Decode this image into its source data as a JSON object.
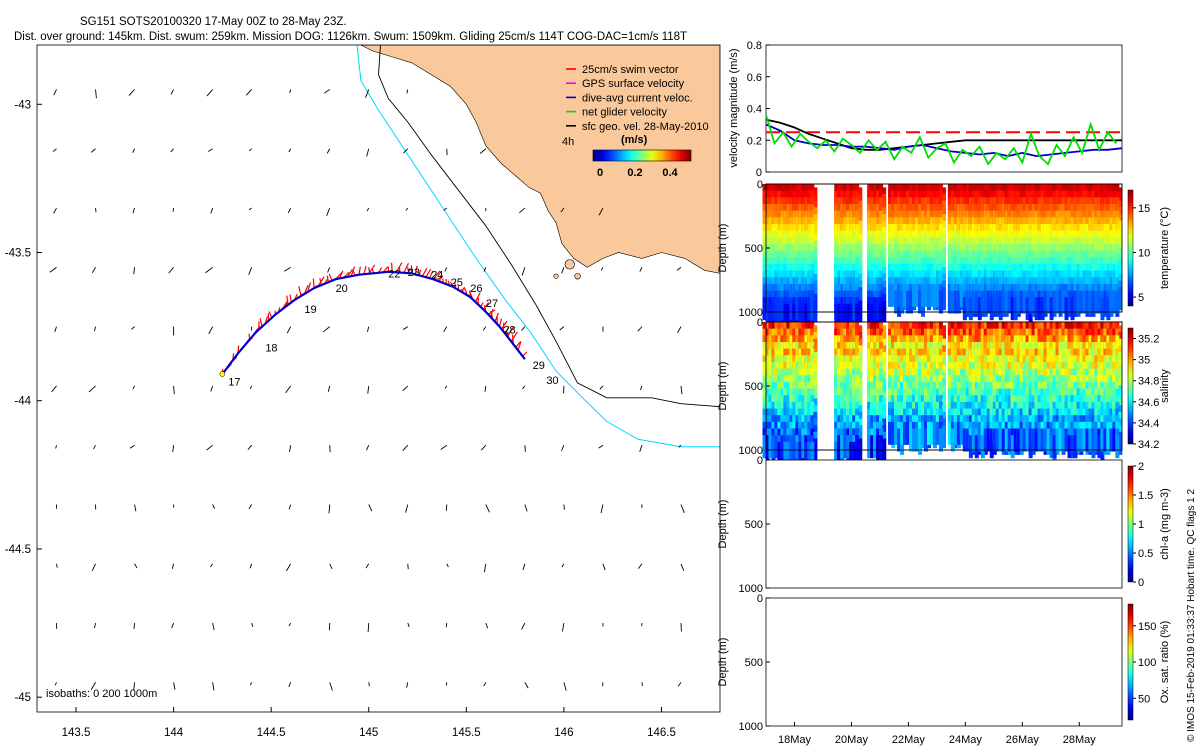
{
  "header": {
    "line1": "SG151 SOTS20100320 17-May 00Z to 28-May 23Z.",
    "line2": "Dist. over ground: 145km. Dist. swum: 259km. Mission DOG: 1126km. Swum: 1509km. Gliding 25cm/s 114T COG-DAC=1cm/s 118T"
  },
  "credit": "© IMOS 15-Feb-2019 01:33:37 Hobart time. QC flags 1  2",
  "colors": {
    "land": "#f9c89b",
    "swim_vector": "#ff0000",
    "gps_velocity": "#ff00ff",
    "dac": "#0000cc",
    "net_velocity": "#00dd00",
    "geo_velocity": "#000000",
    "isobath_200": "#00d8ff",
    "isobath_1000": "#000000"
  },
  "chart_data": [
    {
      "id": "map",
      "type": "scatter",
      "xlim": [
        143.3,
        146.8
      ],
      "ylim": [
        -45.05,
        -42.8
      ],
      "x_ticks": [
        "143.5",
        "144",
        "144.5",
        "145",
        "145.5",
        "146",
        "146.5"
      ],
      "y_ticks": [
        "-43",
        "-43.5",
        "-44",
        "-44.5",
        "-45"
      ],
      "isobaths_label": "isobaths: 0  200 1000m",
      "legend": {
        "position": "top-right",
        "entries": [
          {
            "label": "25cm/s swim vector",
            "color": "#ff0000"
          },
          {
            "label": "GPS surface velocity",
            "color": "#ff00ff"
          },
          {
            "label": "dive-avg current veloc.",
            "color": "#0000cc"
          },
          {
            "label": "net glider velocity",
            "color": "#00dd00"
          },
          {
            "label": "sfc geo. vel. 28-May-2010",
            "color": "#000000"
          }
        ],
        "time_label": "4h",
        "colorbar_unit": "(m/s)",
        "colorbar_ticks": [
          "0",
          "0.2",
          "0.4"
        ]
      },
      "track": [
        [
          144.25,
          -43.91
        ],
        [
          144.33,
          -43.84
        ],
        [
          144.42,
          -43.77
        ],
        [
          144.52,
          -43.71
        ],
        [
          144.62,
          -43.66
        ],
        [
          144.72,
          -43.62
        ],
        [
          144.83,
          -43.59
        ],
        [
          144.95,
          -43.575
        ],
        [
          145.1,
          -43.565
        ],
        [
          145.22,
          -43.57
        ],
        [
          145.33,
          -43.59
        ],
        [
          145.43,
          -43.615
        ],
        [
          145.52,
          -43.65
        ],
        [
          145.6,
          -43.7
        ],
        [
          145.67,
          -43.75
        ],
        [
          145.73,
          -43.8
        ],
        [
          145.8,
          -43.86
        ]
      ],
      "day_labels": [
        {
          "text": "17",
          "lon": 144.28,
          "lat": -43.935
        },
        {
          "text": "18",
          "lon": 144.47,
          "lat": -43.82
        },
        {
          "text": "19",
          "lon": 144.67,
          "lat": -43.69
        },
        {
          "text": "20",
          "lon": 144.83,
          "lat": -43.62
        },
        {
          "text": "22",
          "lon": 145.1,
          "lat": -43.57
        },
        {
          "text": "23",
          "lon": 145.2,
          "lat": -43.565
        },
        {
          "text": "24",
          "lon": 145.32,
          "lat": -43.575
        },
        {
          "text": "25",
          "lon": 145.42,
          "lat": -43.6
        },
        {
          "text": "26",
          "lon": 145.52,
          "lat": -43.62
        },
        {
          "text": "27",
          "lon": 145.6,
          "lat": -43.67
        },
        {
          "text": "28",
          "lon": 145.69,
          "lat": -43.76
        },
        {
          "text": "29",
          "lon": 145.84,
          "lat": -43.88
        },
        {
          "text": "30",
          "lon": 145.91,
          "lat": -43.93
        }
      ],
      "isobath_200": [
        [
          144.94,
          -42.8
        ],
        [
          144.96,
          -42.92
        ],
        [
          145.05,
          -43.02
        ],
        [
          145.2,
          -43.17
        ],
        [
          145.38,
          -43.35
        ],
        [
          145.55,
          -43.52
        ],
        [
          145.7,
          -43.66
        ],
        [
          145.83,
          -43.77
        ],
        [
          145.96,
          -43.9
        ],
        [
          146.08,
          -43.98
        ],
        [
          146.22,
          -44.07
        ],
        [
          146.38,
          -44.13
        ],
        [
          146.6,
          -44.155
        ],
        [
          146.8,
          -44.155
        ]
      ],
      "isobath_1000": [
        [
          145.06,
          -42.8
        ],
        [
          145.05,
          -42.9
        ],
        [
          145.1,
          -42.98
        ],
        [
          145.2,
          -43.06
        ],
        [
          145.32,
          -43.17
        ],
        [
          145.46,
          -43.29
        ],
        [
          145.6,
          -43.41
        ],
        [
          145.73,
          -43.54
        ],
        [
          145.86,
          -43.68
        ],
        [
          145.96,
          -43.8
        ],
        [
          146.07,
          -43.94
        ],
        [
          146.22,
          -43.99
        ],
        [
          146.45,
          -43.99
        ],
        [
          146.6,
          -44.01
        ],
        [
          146.8,
          -44.02
        ]
      ]
    },
    {
      "id": "velocity",
      "type": "line",
      "ylabel": "velocity magnitude (m/s)",
      "xlim": [
        17,
        29.5
      ],
      "ylim": [
        0,
        0.8
      ],
      "y_ticks": [
        "0",
        "0.2",
        "0.4",
        "0.6",
        "0.8"
      ],
      "series": [
        {
          "name": "25cm/s swim vector",
          "style": "dashed",
          "color": "#ff0000",
          "x": [
            17,
            29.5
          ],
          "y": [
            0.25,
            0.25
          ]
        },
        {
          "name": "sfc geo. vel. 28-May-2010",
          "color": "#000000",
          "x": [
            17,
            17.5,
            18,
            18.5,
            19,
            19.5,
            20,
            20.5,
            21,
            21.5,
            22,
            22.5,
            23,
            23.5,
            24,
            24.5,
            25,
            25.5,
            26,
            26.5,
            27,
            27.5,
            28,
            28.5,
            29,
            29.5
          ],
          "y": [
            0.33,
            0.31,
            0.28,
            0.24,
            0.21,
            0.18,
            0.15,
            0.14,
            0.14,
            0.15,
            0.16,
            0.17,
            0.18,
            0.19,
            0.2,
            0.2,
            0.2,
            0.2,
            0.2,
            0.2,
            0.2,
            0.2,
            0.2,
            0.2,
            0.2,
            0.2
          ]
        },
        {
          "name": "dive-avg current veloc.",
          "color": "#0000cc",
          "x": [
            17,
            17.5,
            18,
            18.5,
            19,
            19.5,
            20,
            20.5,
            21,
            21.5,
            22,
            22.5,
            23,
            23.5,
            24,
            24.5,
            25,
            25.5,
            26,
            26.5,
            27,
            27.5,
            28,
            28.5,
            29,
            29.5
          ],
          "y": [
            0.3,
            0.26,
            0.2,
            0.18,
            0.17,
            0.17,
            0.16,
            0.16,
            0.15,
            0.14,
            0.16,
            0.17,
            0.15,
            0.13,
            0.12,
            0.11,
            0.12,
            0.1,
            0.12,
            0.1,
            0.11,
            0.12,
            0.13,
            0.14,
            0.14,
            0.15
          ]
        },
        {
          "name": "net glider velocity",
          "color": "#00dd00",
          "x": [
            17,
            17.3,
            17.6,
            17.9,
            18.2,
            18.5,
            18.8,
            19.1,
            19.4,
            19.7,
            20,
            20.3,
            20.6,
            20.9,
            21.2,
            21.5,
            21.8,
            22.1,
            22.4,
            22.7,
            23,
            23.3,
            23.6,
            23.9,
            24.2,
            24.5,
            24.8,
            25.1,
            25.4,
            25.7,
            26,
            26.3,
            26.6,
            26.9,
            27.2,
            27.5,
            27.8,
            28.1,
            28.4,
            28.7,
            29,
            29.3
          ],
          "y": [
            0.36,
            0.18,
            0.25,
            0.16,
            0.24,
            0.19,
            0.15,
            0.2,
            0.13,
            0.21,
            0.17,
            0.12,
            0.2,
            0.14,
            0.19,
            0.08,
            0.16,
            0.12,
            0.22,
            0.09,
            0.15,
            0.18,
            0.06,
            0.14,
            0.1,
            0.16,
            0.05,
            0.12,
            0.08,
            0.15,
            0.06,
            0.24,
            0.1,
            0.05,
            0.17,
            0.1,
            0.22,
            0.12,
            0.3,
            0.14,
            0.25,
            0.18
          ]
        }
      ]
    },
    {
      "id": "temperature",
      "type": "heatmap",
      "ylabel": "Depth (m)",
      "cbar_label": "temperature (°C)",
      "ylim": [
        1000,
        0
      ],
      "y_ticks": [
        "0",
        "500",
        "1000"
      ],
      "clim": [
        4,
        17
      ],
      "cbar_ticks": [
        "5",
        "10",
        "15"
      ],
      "gaps": [
        [
          18.75,
          19.5
        ],
        [
          20.35,
          20.6
        ],
        [
          21.1,
          21.4
        ],
        [
          23.3,
          23.5
        ]
      ]
    },
    {
      "id": "salinity",
      "type": "heatmap",
      "ylabel": "Depth (m)",
      "cbar_label": "salinity",
      "ylim": [
        1000,
        0
      ],
      "y_ticks": [
        "0",
        "500",
        "1000"
      ],
      "clim": [
        34.2,
        35.3
      ],
      "cbar_ticks": [
        "34.2",
        "34.4",
        "34.6",
        "34.8",
        "35",
        "35.2"
      ],
      "gaps": [
        [
          18.75,
          19.5
        ],
        [
          20.35,
          20.6
        ],
        [
          21.1,
          21.4
        ],
        [
          23.3,
          23.5
        ]
      ]
    },
    {
      "id": "chlorophyll",
      "type": "heatmap",
      "ylabel": "Depth (m)",
      "cbar_label": "chl-a (mg m-3)",
      "ylim": [
        1000,
        0
      ],
      "y_ticks": [
        "0",
        "500",
        "1000"
      ],
      "clim": [
        0,
        2
      ],
      "cbar_ticks": [
        "0",
        "0.5",
        "1",
        "1.5",
        "2"
      ]
    },
    {
      "id": "oxygen",
      "type": "heatmap",
      "ylabel": "Depth (m)",
      "cbar_label": "Ox. sat. ratio (%)",
      "ylim": [
        1000,
        0
      ],
      "y_ticks": [
        "0",
        "500",
        "1000"
      ],
      "clim": [
        20,
        180
      ],
      "cbar_ticks": [
        "50",
        "100",
        "150"
      ],
      "x_ticks": [
        "18May",
        "20May",
        "22May",
        "24May",
        "26May",
        "28May"
      ],
      "x_tick_days": [
        18,
        20,
        22,
        24,
        26,
        28
      ],
      "xlim": [
        17,
        29.5
      ]
    }
  ]
}
